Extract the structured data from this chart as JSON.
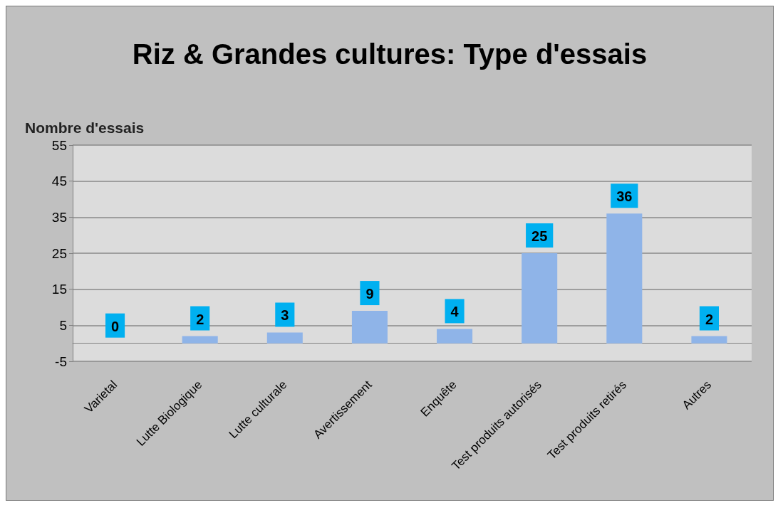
{
  "chart_data": {
    "type": "bar",
    "title": "Riz & Grandes cultures: Type d'essais",
    "ylabel": "Nombre d'essais",
    "categories": [
      "Varietal",
      "Lutte Biologique",
      "Lutte culturale",
      "Avertissement",
      "Enquête",
      "Test produits autorisés",
      "Test produits retirés",
      "Autres"
    ],
    "values": [
      0,
      2,
      3,
      9,
      4,
      25,
      36,
      2
    ],
    "color": "#8fb4e8",
    "ylim": [
      -5,
      55
    ],
    "yticks": [
      -5,
      5,
      15,
      25,
      35,
      45,
      55
    ],
    "grid": "y",
    "data_labels": true
  }
}
